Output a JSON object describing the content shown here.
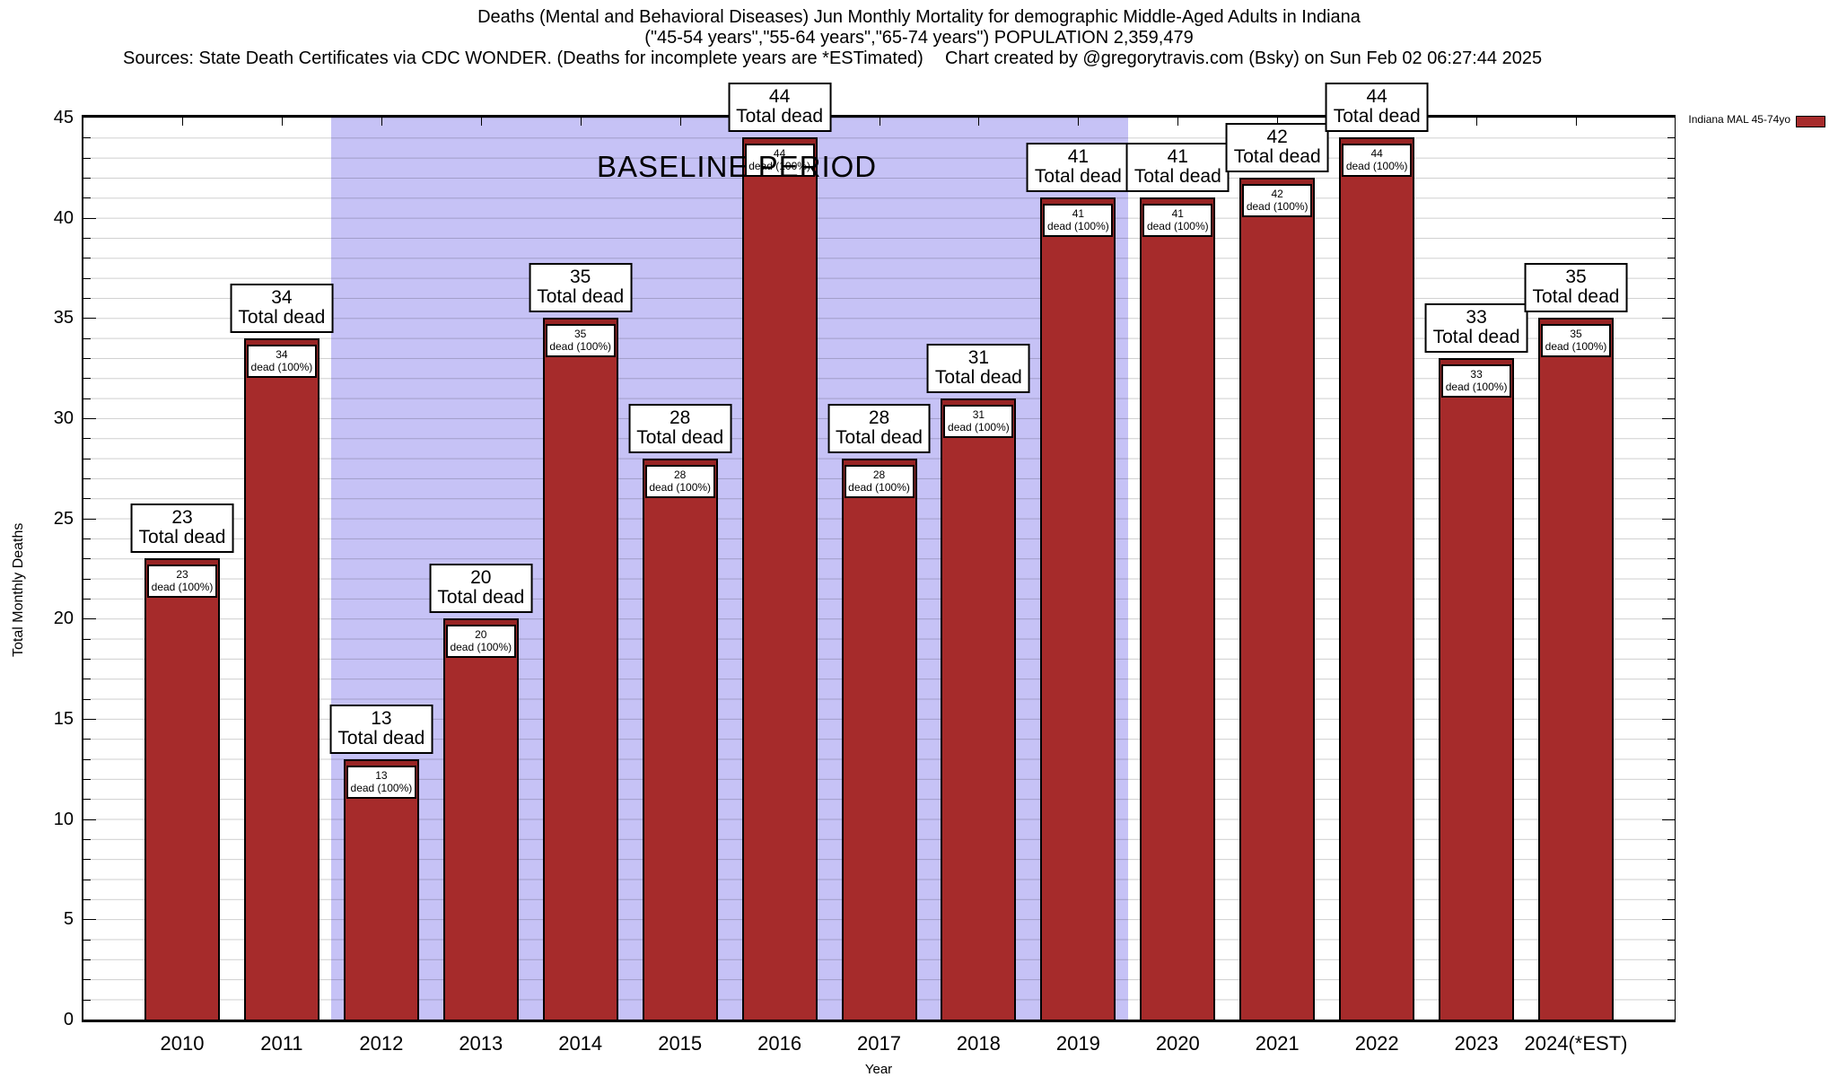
{
  "title": {
    "line1": "Deaths (Mental and Behavioral Diseases) Jun Monthly Mortality for demographic Middle-Aged Adults in Indiana",
    "line2": "(\"45-54 years\",\"55-64 years\",\"65-74 years\") POPULATION 2,359,479",
    "sources": "Sources: State Death Certificates via CDC WONDER. (Deaths for incomplete years are *ESTimated)",
    "credit": "Chart created by @gregorytravis.com (Bsky) on Sun Feb 02 06:27:44 2025"
  },
  "legend": {
    "label": "Indiana MAL 45-74yo"
  },
  "baseline": {
    "label": "BASELINE PERIOD",
    "start_category": "2012",
    "end_category": "2019"
  },
  "axes": {
    "xlabel": "Year",
    "ylabel": "Total Monthly Deaths",
    "ymin": 0,
    "ymax": 45,
    "y_ticks": [
      0,
      5,
      10,
      15,
      20,
      25,
      30,
      35,
      40,
      45
    ],
    "grid": "minor horizontal every 1 unit"
  },
  "colors": {
    "bar_fill": "#A62B2B",
    "bar_cap": "#982424",
    "bar_border": "#000000",
    "baseline_band": "#C6C2F6",
    "label_box_bg": "#FFFFFF",
    "label_box_border": "#000000"
  },
  "chart_data": {
    "type": "bar",
    "title": "Deaths (Mental and Behavioral Diseases) Jun Monthly Mortality for demographic Middle-Aged Adults in Indiana",
    "xlabel": "Year",
    "ylabel": "Total Monthly Deaths",
    "ylim": [
      0,
      45
    ],
    "legend_position": "top-right-outside",
    "categories": [
      "2010",
      "2011",
      "2012",
      "2013",
      "2014",
      "2015",
      "2016",
      "2017",
      "2018",
      "2019",
      "2020",
      "2021",
      "2022",
      "2023",
      "2024(*EST)"
    ],
    "series": [
      {
        "name": "Indiana MAL 45-74yo",
        "values": [
          23,
          34,
          13,
          20,
          35,
          28,
          44,
          28,
          31,
          41,
          41,
          42,
          44,
          33,
          35
        ]
      }
    ],
    "outer_label_suffix": "Total dead",
    "inner_label_suffix": "dead (100%)",
    "baseline_band_categories": [
      "2012",
      "2013",
      "2014",
      "2015",
      "2016",
      "2017",
      "2018",
      "2019"
    ]
  }
}
